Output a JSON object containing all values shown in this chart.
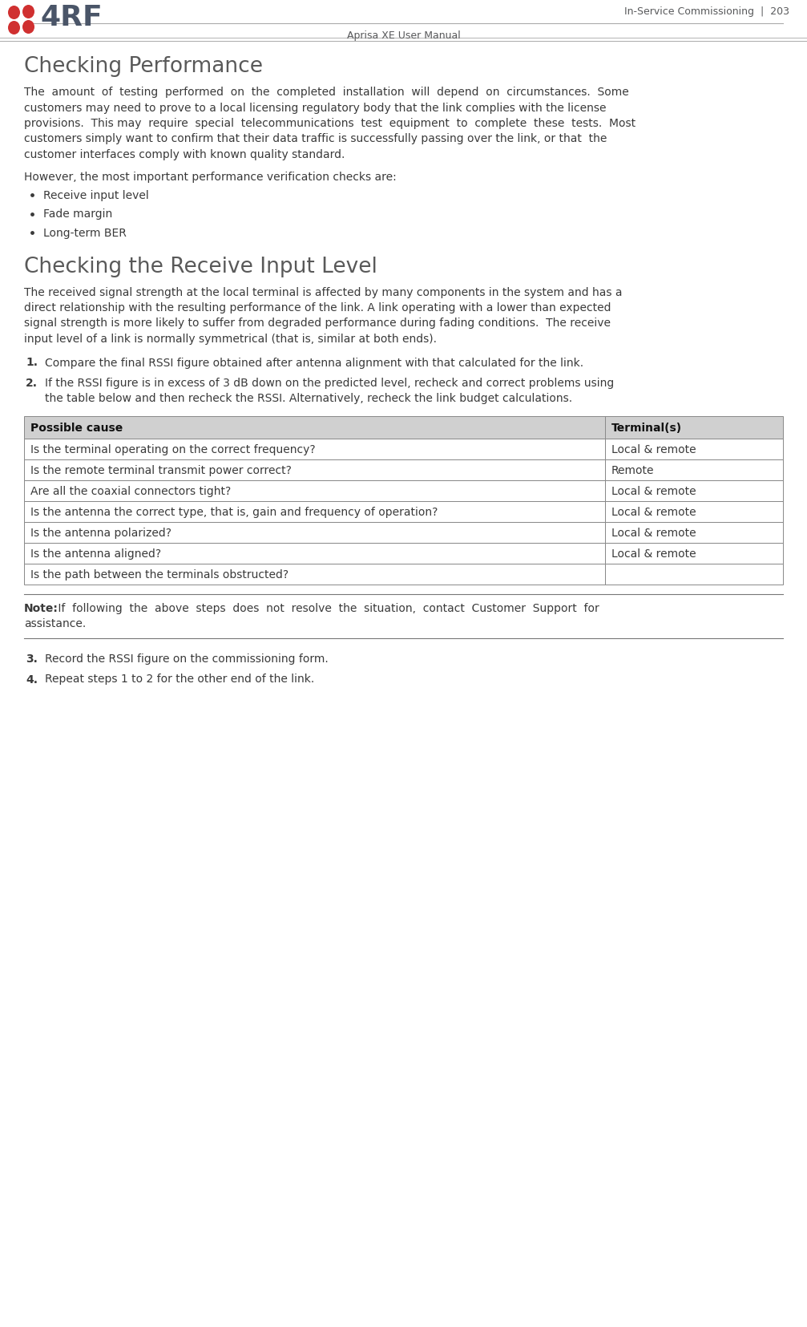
{
  "page_header_right": "In-Service Commissioning  |  203",
  "page_footer": "Aprisa XE User Manual",
  "section1_title": "Checking Performance",
  "however_text": "However, the most important performance verification checks are:",
  "bullets": [
    "Receive input level",
    "Fade margin",
    "Long-term BER"
  ],
  "section2_title": "Checking the Receive Input Level",
  "step1": "Compare the final RSSI figure obtained after antenna alignment with that calculated for the link.",
  "step2_line1": "If the RSSI figure is in excess of 3 dB down on the predicted level, recheck and correct problems using",
  "step2_line2": "the table below and then recheck the RSSI. Alternatively, recheck the link budget calculations.",
  "table_header": [
    "Possible cause",
    "Terminal(s)"
  ],
  "table_rows": [
    [
      "Is the terminal operating on the correct frequency?",
      "Local & remote"
    ],
    [
      "Is the remote terminal transmit power correct?",
      "Remote"
    ],
    [
      "Are all the coaxial connectors tight?",
      "Local & remote"
    ],
    [
      "Is the antenna the correct type, that is, gain and frequency of operation?",
      "Local & remote"
    ],
    [
      "Is the antenna polarized?",
      "Local & remote"
    ],
    [
      "Is the antenna aligned?",
      "Local & remote"
    ],
    [
      "Is the path between the terminals obstructed?",
      ""
    ]
  ],
  "note_bold": "Note:",
  "note_line1": " If  following  the  above  steps  does  not  resolve  the  situation,  contact  Customer  Support  for",
  "note_line2": "assistance.",
  "step3": "Record the RSSI figure on the commissioning form.",
  "step4": "Repeat steps 1 to 2 for the other end of the link.",
  "body1_lines": [
    "The  amount  of  testing  performed  on  the  completed  installation  will  depend  on  circumstances.  Some",
    "customers may need to prove to a local licensing regulatory body that the link complies with the license",
    "provisions.  This may  require  special  telecommunications  test  equipment  to  complete  these  tests.  Most",
    "customers simply want to confirm that their data traffic is successfully passing over the link, or that  the",
    "customer interfaces comply with known quality standard."
  ],
  "body2_lines": [
    "The received signal strength at the local terminal is affected by many components in the system and has a",
    "direct relationship with the resulting performance of the link. A link operating with a lower than expected",
    "signal strength is more likely to suffer from degraded performance during fading conditions.  The receive",
    "input level of a link is normally symmetrical (that is, similar at both ends)."
  ],
  "bg_color": "#ffffff",
  "text_color": "#3a3a3a",
  "header_text_color": "#58595b",
  "title_color": "#595959",
  "table_header_bg": "#d0d0d0",
  "table_border_color": "#888888",
  "logo_red": "#d03030",
  "logo_gray": "#4a5568",
  "note_line_color": "#777777"
}
